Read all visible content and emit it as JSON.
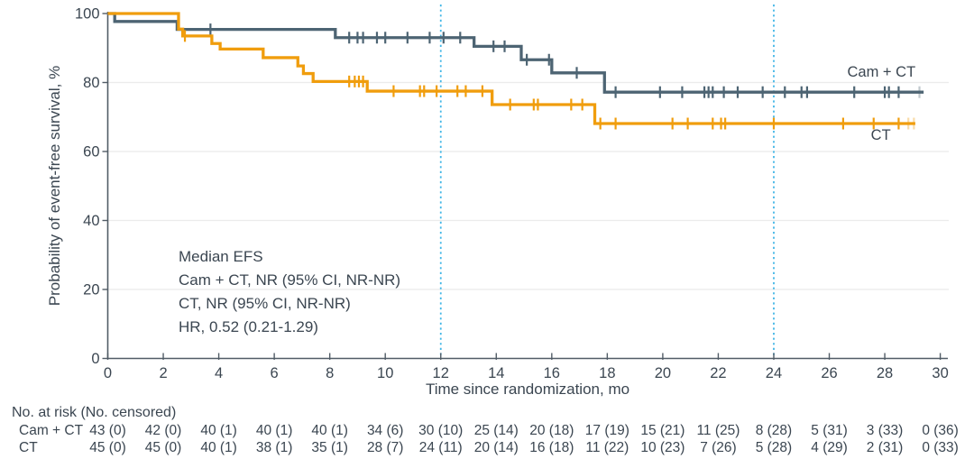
{
  "chart_data": {
    "type": "line",
    "subtype": "kaplan-meier-step",
    "title": "",
    "xlabel": "Time since randomization, mo",
    "ylabel": "Probability of event-free survival, %",
    "xlim": [
      0,
      30
    ],
    "ylim": [
      0,
      100
    ],
    "x_ticks": [
      0,
      2,
      4,
      6,
      8,
      10,
      12,
      14,
      16,
      18,
      20,
      22,
      24,
      26,
      28,
      30
    ],
    "y_ticks": [
      0,
      20,
      40,
      60,
      80,
      100
    ],
    "grid": "horizontal-light",
    "legend_position": "end-of-curve-labels",
    "reference_lines_x": [
      12,
      24
    ],
    "colors": {
      "reference_line": "#41b6e6",
      "grid": "#ebebeb",
      "axis": "#515c66",
      "text": "#3b4651"
    },
    "annotation_lines": [
      "Median EFS",
      "Cam + CT, NR (95% CI, NR-NR)",
      "CT, NR (95% CI, NR-NR)",
      "HR, 0.52 (0.21-1.29)"
    ],
    "series": [
      {
        "name": "Cam + CT",
        "color": "#4d6473",
        "label_at": [
          26.65,
          81.7
        ],
        "steps": [
          [
            0,
            100
          ],
          [
            0.25,
            97.7
          ],
          [
            2.5,
            95.4
          ],
          [
            8.2,
            93.0
          ],
          [
            13.2,
            90.5
          ],
          [
            14.9,
            86.6
          ],
          [
            16.0,
            82.8
          ],
          [
            17.9,
            77.2
          ],
          [
            29.4,
            77.2
          ]
        ],
        "censors": [
          [
            3.7,
            95.4
          ],
          [
            8.7,
            93.0
          ],
          [
            9.0,
            93.0
          ],
          [
            9.2,
            93.0
          ],
          [
            9.7,
            93.0
          ],
          [
            10.0,
            93.0
          ],
          [
            10.8,
            93.0
          ],
          [
            11.6,
            93.0
          ],
          [
            12.1,
            93.0
          ],
          [
            12.7,
            93.0
          ],
          [
            13.9,
            90.5
          ],
          [
            14.3,
            90.5
          ],
          [
            15.1,
            86.6
          ],
          [
            15.9,
            86.6
          ],
          [
            16.9,
            82.8
          ],
          [
            18.3,
            77.2
          ],
          [
            19.9,
            77.2
          ],
          [
            20.7,
            77.2
          ],
          [
            21.5,
            77.2
          ],
          [
            21.65,
            77.2
          ],
          [
            21.8,
            77.2
          ],
          [
            22.2,
            77.2
          ],
          [
            22.7,
            77.2
          ],
          [
            23.6,
            77.2
          ],
          [
            24.4,
            77.2
          ],
          [
            25.0,
            77.2
          ],
          [
            25.2,
            77.2
          ],
          [
            26.9,
            77.2
          ],
          [
            28.0,
            77.2
          ],
          [
            28.15,
            77.2
          ],
          [
            28.5,
            77.2
          ]
        ],
        "faded_censors": [
          [
            29.25,
            77.2
          ]
        ]
      },
      {
        "name": "CT",
        "color": "#f09d0d",
        "label_at": [
          27.5,
          63.4
        ],
        "steps": [
          [
            0,
            100
          ],
          [
            2.55,
            95.5
          ],
          [
            2.7,
            93.5
          ],
          [
            3.75,
            91.3
          ],
          [
            4.05,
            89.7
          ],
          [
            5.6,
            87.2
          ],
          [
            6.85,
            84.8
          ],
          [
            7.05,
            82.6
          ],
          [
            7.4,
            80.3
          ],
          [
            9.35,
            77.5
          ],
          [
            13.85,
            73.6
          ],
          [
            17.55,
            68.1
          ],
          [
            29.1,
            68.1
          ]
        ],
        "censors": [
          [
            2.78,
            93.5
          ],
          [
            8.7,
            80.3
          ],
          [
            8.9,
            80.3
          ],
          [
            9.05,
            80.3
          ],
          [
            9.2,
            80.3
          ],
          [
            10.3,
            77.5
          ],
          [
            11.25,
            77.5
          ],
          [
            11.4,
            77.5
          ],
          [
            11.85,
            77.5
          ],
          [
            12.6,
            77.5
          ],
          [
            12.9,
            77.5
          ],
          [
            13.5,
            77.5
          ],
          [
            14.5,
            73.6
          ],
          [
            15.35,
            73.6
          ],
          [
            15.5,
            73.6
          ],
          [
            16.7,
            73.6
          ],
          [
            17.1,
            73.6
          ],
          [
            17.75,
            68.1
          ],
          [
            18.3,
            68.1
          ],
          [
            20.35,
            68.1
          ],
          [
            20.9,
            68.1
          ],
          [
            21.8,
            68.1
          ],
          [
            22.1,
            68.1
          ],
          [
            22.25,
            68.1
          ],
          [
            24.0,
            68.1
          ],
          [
            26.5,
            68.1
          ],
          [
            27.6,
            68.1
          ],
          [
            28.5,
            68.1
          ]
        ],
        "faded_censors": [
          [
            28.85,
            68.1
          ],
          [
            29.05,
            68.1
          ]
        ]
      }
    ]
  },
  "risk_table": {
    "header": "No. at risk (No. censored)",
    "time_points": [
      0,
      2,
      4,
      6,
      8,
      10,
      12,
      14,
      16,
      18,
      20,
      22,
      24,
      26,
      28,
      30
    ],
    "rows": [
      {
        "label": "Cam + CT",
        "values": [
          "43 (0)",
          "42 (0)",
          "40 (1)",
          "40 (1)",
          "40 (1)",
          "34 (6)",
          "30 (10)",
          "25 (14)",
          "20 (18)",
          "17 (19)",
          "15 (21)",
          "11 (25)",
          "8 (28)",
          "5 (31)",
          "3 (33)",
          "0 (36)"
        ]
      },
      {
        "label": "CT",
        "values": [
          "45 (0)",
          "45 (0)",
          "40 (1)",
          "38 (1)",
          "35 (1)",
          "28 (7)",
          "24 (11)",
          "20 (14)",
          "16 (18)",
          "11 (22)",
          "10 (23)",
          "7 (26)",
          "5 (28)",
          "4 (29)",
          "2 (31)",
          "0 (33)"
        ]
      }
    ]
  }
}
